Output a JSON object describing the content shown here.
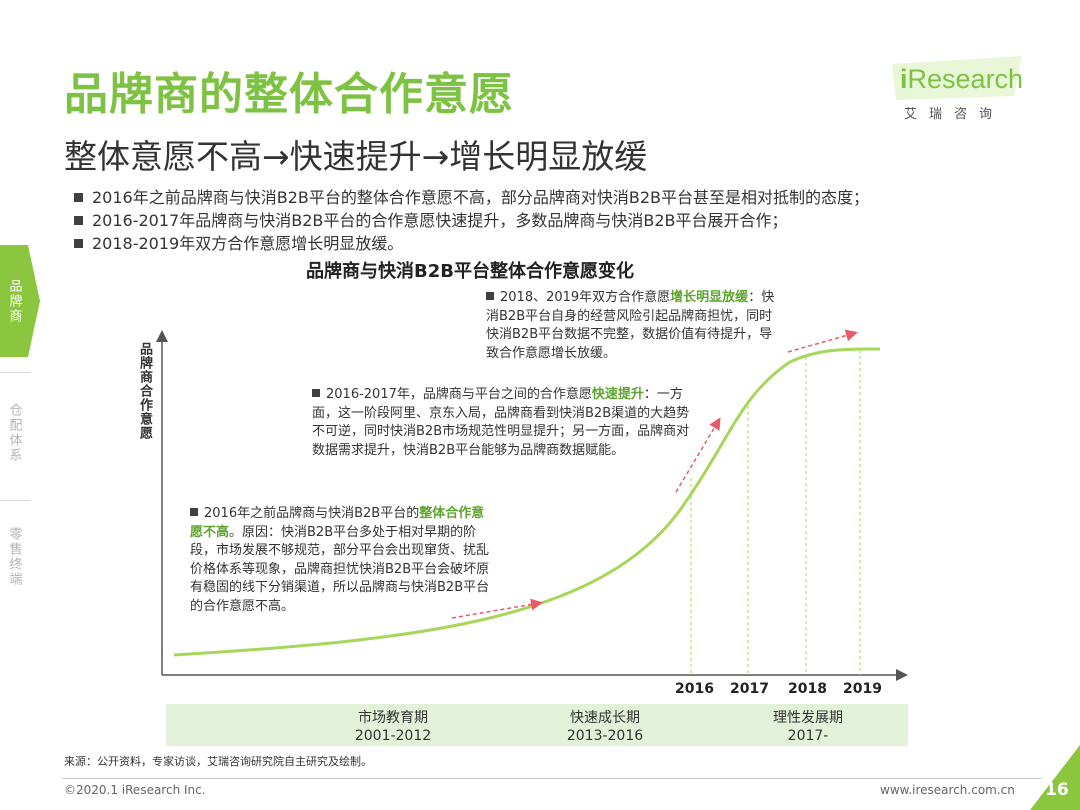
{
  "header": {
    "title": "品牌商的整体合作意愿",
    "subtitle": "整体意愿不高→快速提升→增长明显放缓"
  },
  "logo": {
    "brand_i": "i",
    "brand_rest": "Research",
    "chinese": "艾瑞咨询"
  },
  "bullets": [
    "2016年之前品牌商与快消B2B平台的整体合作意愿不高，部分品牌商对快消B2B平台甚至是相对抵制的态度；",
    "2016-2017年品牌商与快消B2B平台的合作意愿快速提升，多数品牌商与快消B2B平台展开合作；",
    "2018-2019年双方合作意愿增长明显放缓。"
  ],
  "side_tabs": [
    "品牌商",
    "仓配体系",
    "零售终端"
  ],
  "chart": {
    "title": "品牌商与快消B2B平台整体合作意愿变化",
    "ylabel": "品牌商合作意愿",
    "notes": {
      "early": {
        "pre": "2016年之前品牌商与快消B2B平台的",
        "hl": "整体合作意愿不高",
        "post": "。原因：快消B2B平台多处于相对早期的阶段，市场发展不够规范，部分平台会出现窜货、扰乱价格体系等现象，品牌商担忧快消B2B平台会破坏原有稳固的线下分销渠道，所以品牌商与快消B2B平台的合作意愿不高。"
      },
      "mid": {
        "pre": "2016-2017年，品牌商与平台之间的合作意愿",
        "hl": "快速提升",
        "post": "：一方面，这一阶段阿里、京东入局，品牌商看到快消B2B渠道的大趋势不可逆，同时快消B2B市场规范性明显提升；另一方面，品牌商对数据需求提升，快消B2B平台能够为品牌商数据赋能。"
      },
      "late": {
        "pre": "2018、2019年双方合作意愿",
        "hl": "增长明显放缓",
        "post": "：快消B2B平台自身的经营风险引起品牌商担忧，同时快消B2B平台数据不完整，数据价值有待提升，导致合作意愿增长放缓。"
      }
    },
    "years": [
      "2016",
      "2017",
      "2018",
      "2019"
    ],
    "phases": [
      {
        "name": "市场教育期",
        "range": "2001-2012"
      },
      {
        "name": "快速成长期",
        "range": "2013-2016"
      },
      {
        "name": "理性发展期",
        "range": "2017-"
      }
    ]
  },
  "chart_data": {
    "type": "line",
    "title": "品牌商与快消B2B平台整体合作意愿变化",
    "ylabel": "品牌商合作意愿",
    "xlabel": "",
    "x_tick_labels": [
      "2016",
      "2017",
      "2018",
      "2019"
    ],
    "shape": "S-curve: low and slowly rising before 2016, rapid rise 2016-2017, flattening 2018-2019",
    "series": [
      {
        "values": []
      }
    ]
  },
  "footer": {
    "source": "来源：公开资料，专家访谈，艾瑞咨询研究院自主研究及绘制。",
    "copyright": "©2020.1 iResearch Inc.",
    "website": "www.iresearch.com.cn",
    "page": "16"
  },
  "colors": {
    "accent": "#7dc242",
    "curve": "#a6d65a",
    "arrow": "#e85a6a",
    "phase_bg": "#e4f1d9"
  }
}
